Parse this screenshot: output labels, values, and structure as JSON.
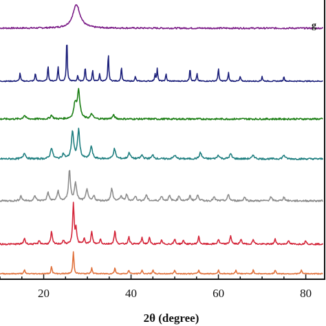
{
  "chart_data": {
    "type": "line",
    "xlabel": "2θ (degree)",
    "ylabel": "",
    "xlim": [
      10,
      84
    ],
    "xticks": [
      20,
      40,
      60,
      80
    ],
    "grid": false,
    "legend": "none",
    "series": [
      {
        "name": "g",
        "color": "#7B1C87",
        "baseline": 0.0,
        "noise": 0.3,
        "peaks": [
          [
            27.5,
            9.5,
            1.0
          ]
        ]
      },
      {
        "color": "#1B1F7A",
        "baseline": 0.0,
        "noise": 0.2,
        "peaks": [
          [
            14.6,
            3.5,
            0.12
          ],
          [
            18.1,
            3.5,
            0.12
          ],
          [
            21.0,
            6.5,
            0.12
          ],
          [
            23.3,
            6.0,
            0.12
          ],
          [
            25.3,
            18.0,
            0.12
          ],
          [
            27.8,
            2.5,
            0.12
          ],
          [
            29.5,
            6.0,
            0.12
          ],
          [
            31.2,
            4.5,
            0.12
          ],
          [
            32.8,
            3.0,
            0.12
          ],
          [
            34.8,
            11.5,
            0.12
          ],
          [
            37.8,
            6.0,
            0.12
          ],
          [
            41.0,
            2.0,
            0.12
          ],
          [
            45.5,
            3.0,
            0.12
          ],
          [
            46.0,
            5.0,
            0.12
          ],
          [
            48.0,
            3.0,
            0.12
          ],
          [
            53.5,
            5.5,
            0.12
          ],
          [
            55.1,
            3.0,
            0.12
          ],
          [
            60.0,
            5.5,
            0.12
          ],
          [
            62.3,
            3.5,
            0.12
          ],
          [
            65.0,
            2.0,
            0.12
          ],
          [
            70.0,
            2.0,
            0.12
          ],
          [
            75.0,
            2.0,
            0.12
          ]
        ]
      },
      {
        "color": "#1A7E13",
        "baseline": 0.0,
        "noise": 0.35,
        "peaks": [
          [
            15.6,
            1.5,
            0.3
          ],
          [
            21.8,
            1.5,
            0.3
          ],
          [
            27.2,
            6.0,
            0.35
          ],
          [
            28.0,
            11.0,
            0.35
          ],
          [
            31.0,
            2.0,
            0.3
          ],
          [
            36.0,
            1.5,
            0.3
          ]
        ]
      },
      {
        "color": "#1F7F80",
        "baseline": 0.0,
        "noise": 0.35,
        "peaks": [
          [
            15.6,
            2.5,
            0.3
          ],
          [
            21.8,
            4.5,
            0.3
          ],
          [
            24.5,
            2.0,
            0.3
          ],
          [
            26.6,
            11.0,
            0.3
          ],
          [
            28.0,
            11.5,
            0.3
          ],
          [
            30.9,
            5.0,
            0.3
          ],
          [
            36.2,
            4.0,
            0.3
          ],
          [
            39.6,
            2.5,
            0.3
          ],
          [
            42.5,
            1.5,
            0.3
          ],
          [
            45.0,
            1.5,
            0.3
          ],
          [
            50.0,
            1.5,
            0.3
          ],
          [
            55.9,
            2.5,
            0.3
          ],
          [
            60.0,
            1.5,
            0.3
          ],
          [
            62.8,
            2.0,
            0.3
          ],
          [
            68.0,
            1.5,
            0.3
          ],
          [
            75.0,
            1.5,
            0.3
          ]
        ]
      },
      {
        "color": "#8C8C8C",
        "baseline": 0.0,
        "noise": 0.35,
        "peaks": [
          [
            14.8,
            2.0,
            0.25
          ],
          [
            18.0,
            2.0,
            0.25
          ],
          [
            21.0,
            3.5,
            0.25
          ],
          [
            23.3,
            4.0,
            0.25
          ],
          [
            25.9,
            12.5,
            0.25
          ],
          [
            27.3,
            7.0,
            0.3
          ],
          [
            29.9,
            5.0,
            0.25
          ],
          [
            31.5,
            2.0,
            0.25
          ],
          [
            35.6,
            5.0,
            0.25
          ],
          [
            37.7,
            2.0,
            0.25
          ],
          [
            39.0,
            2.5,
            0.25
          ],
          [
            41.0,
            2.0,
            0.25
          ],
          [
            43.5,
            2.5,
            0.25
          ],
          [
            47.0,
            2.0,
            0.25
          ],
          [
            48.8,
            2.0,
            0.25
          ],
          [
            51.0,
            2.0,
            0.25
          ],
          [
            53.5,
            2.0,
            0.25
          ],
          [
            55.3,
            2.5,
            0.25
          ],
          [
            59.0,
            1.5,
            0.25
          ],
          [
            62.3,
            2.5,
            0.25
          ],
          [
            66.0,
            1.5,
            0.25
          ],
          [
            72.0,
            1.5,
            0.25
          ],
          [
            75.0,
            1.5,
            0.25
          ]
        ]
      },
      {
        "color": "#D4263A",
        "baseline": 0.0,
        "noise": 0.3,
        "peaks": [
          [
            15.6,
            2.5,
            0.2
          ],
          [
            19.0,
            1.5,
            0.2
          ],
          [
            21.8,
            5.0,
            0.2
          ],
          [
            24.5,
            1.5,
            0.2
          ],
          [
            26.8,
            16.0,
            0.2
          ],
          [
            27.4,
            6.0,
            0.2
          ],
          [
            29.3,
            2.5,
            0.2
          ],
          [
            31.0,
            5.0,
            0.2
          ],
          [
            33.0,
            2.0,
            0.2
          ],
          [
            36.3,
            5.5,
            0.2
          ],
          [
            39.5,
            3.0,
            0.2
          ],
          [
            42.5,
            2.5,
            0.2
          ],
          [
            44.2,
            2.5,
            0.2
          ],
          [
            47.0,
            1.5,
            0.2
          ],
          [
            50.0,
            2.0,
            0.2
          ],
          [
            52.0,
            1.5,
            0.2
          ],
          [
            55.5,
            3.0,
            0.2
          ],
          [
            60.0,
            2.0,
            0.2
          ],
          [
            62.8,
            3.5,
            0.2
          ],
          [
            65.2,
            2.0,
            0.2
          ],
          [
            68.0,
            2.0,
            0.2
          ],
          [
            73.0,
            2.0,
            0.2
          ],
          [
            76.0,
            1.5,
            0.2
          ],
          [
            80.0,
            1.5,
            0.2
          ]
        ]
      },
      {
        "color": "#E0703A",
        "baseline": 0.0,
        "noise": 0.2,
        "peaks": [
          [
            15.6,
            1.5,
            0.15
          ],
          [
            21.8,
            3.0,
            0.15
          ],
          [
            26.8,
            9.0,
            0.15
          ],
          [
            31.0,
            2.5,
            0.15
          ],
          [
            36.3,
            2.5,
            0.15
          ],
          [
            39.5,
            1.5,
            0.15
          ],
          [
            42.5,
            1.5,
            0.15
          ],
          [
            45.0,
            1.5,
            0.15
          ],
          [
            50.0,
            1.5,
            0.15
          ],
          [
            55.5,
            1.5,
            0.15
          ],
          [
            60.0,
            1.5,
            0.15
          ],
          [
            64.0,
            1.5,
            0.15
          ],
          [
            68.0,
            1.5,
            0.15
          ],
          [
            73.0,
            1.5,
            0.15
          ],
          [
            79.0,
            1.5,
            0.15
          ]
        ]
      }
    ]
  }
}
